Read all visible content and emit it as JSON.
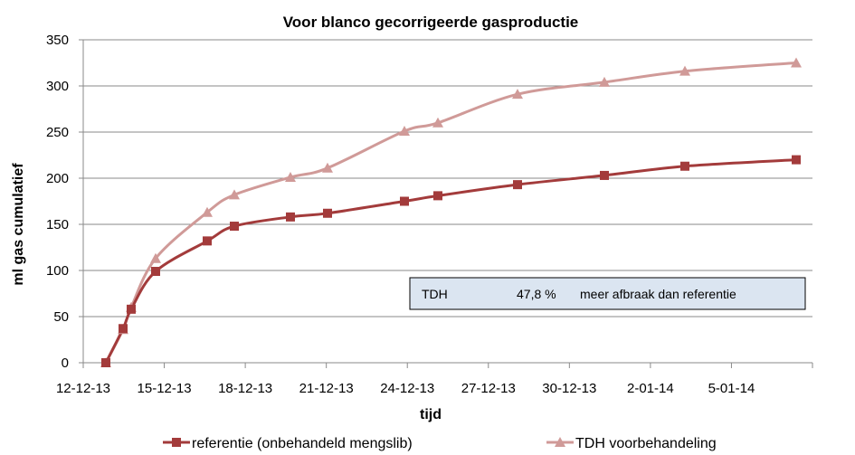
{
  "chart_data": {
    "type": "line",
    "title": "Voor blanco gecorrigeerde gasproductie",
    "xlabel": "tijd",
    "ylabel": "ml gas cumulatief",
    "ylim": [
      0,
      350
    ],
    "yticks": [
      0,
      50,
      100,
      150,
      200,
      250,
      300,
      350
    ],
    "xlim": [
      "2013-12-12",
      "2014-01-08"
    ],
    "xticks": [
      {
        "date": "2013-12-12",
        "label": "12-12-13"
      },
      {
        "date": "2013-12-15",
        "label": "15-12-13"
      },
      {
        "date": "2013-12-18",
        "label": "18-12-13"
      },
      {
        "date": "2013-12-21",
        "label": "21-12-13"
      },
      {
        "date": "2013-12-24",
        "label": "24-12-13"
      },
      {
        "date": "2013-12-27",
        "label": "27-12-13"
      },
      {
        "date": "2013-12-30",
        "label": "30-12-13"
      },
      {
        "date": "2014-01-02",
        "label": "2-01-14"
      },
      {
        "date": "2014-01-05",
        "label": "5-01-14"
      }
    ],
    "grid": "horizontal",
    "legend_position": "bottom",
    "series": [
      {
        "name": "referentie (onbehandeld mengslib)",
        "color": "#a33b3b",
        "marker": "square",
        "points": [
          {
            "x": "2013-12-13",
            "y": 0
          },
          {
            "x": "2013-12-14",
            "y": 37
          },
          {
            "x": "2013-12-14",
            "y": 58
          },
          {
            "x": "2013-12-15",
            "y": 99
          },
          {
            "x": "2013-12-16",
            "y": 132
          },
          {
            "x": "2013-12-17",
            "y": 148
          },
          {
            "x": "2013-12-19",
            "y": 158
          },
          {
            "x": "2013-12-21",
            "y": 162
          },
          {
            "x": "2013-12-23",
            "y": 175
          },
          {
            "x": "2013-12-24",
            "y": 181
          },
          {
            "x": "2013-12-27",
            "y": 193
          },
          {
            "x": "2013-12-30",
            "y": 203
          },
          {
            "x": "2014-01-02",
            "y": 213
          },
          {
            "x": "2014-01-06",
            "y": 220
          }
        ]
      },
      {
        "name": "TDH voorbehandeling",
        "color": "#d09a98",
        "marker": "triangle",
        "points": [
          {
            "x": "2013-12-13",
            "y": 0
          },
          {
            "x": "2013-12-14",
            "y": 36
          },
          {
            "x": "2013-12-14",
            "y": 60
          },
          {
            "x": "2013-12-15",
            "y": 113
          },
          {
            "x": "2013-12-16",
            "y": 163
          },
          {
            "x": "2013-12-17",
            "y": 182
          },
          {
            "x": "2013-12-19",
            "y": 201
          },
          {
            "x": "2013-12-21",
            "y": 211
          },
          {
            "x": "2013-12-23",
            "y": 251
          },
          {
            "x": "2013-12-24",
            "y": 260
          },
          {
            "x": "2013-12-27",
            "y": 291
          },
          {
            "x": "2013-12-30",
            "y": 304
          },
          {
            "x": "2014-01-02",
            "y": 316
          },
          {
            "x": "2014-01-06",
            "y": 325
          }
        ]
      }
    ],
    "annotation": {
      "label": "TDH",
      "value": "47,8 %",
      "text": "meer afbraak dan referentie",
      "fill": "#dbe5f1"
    }
  }
}
